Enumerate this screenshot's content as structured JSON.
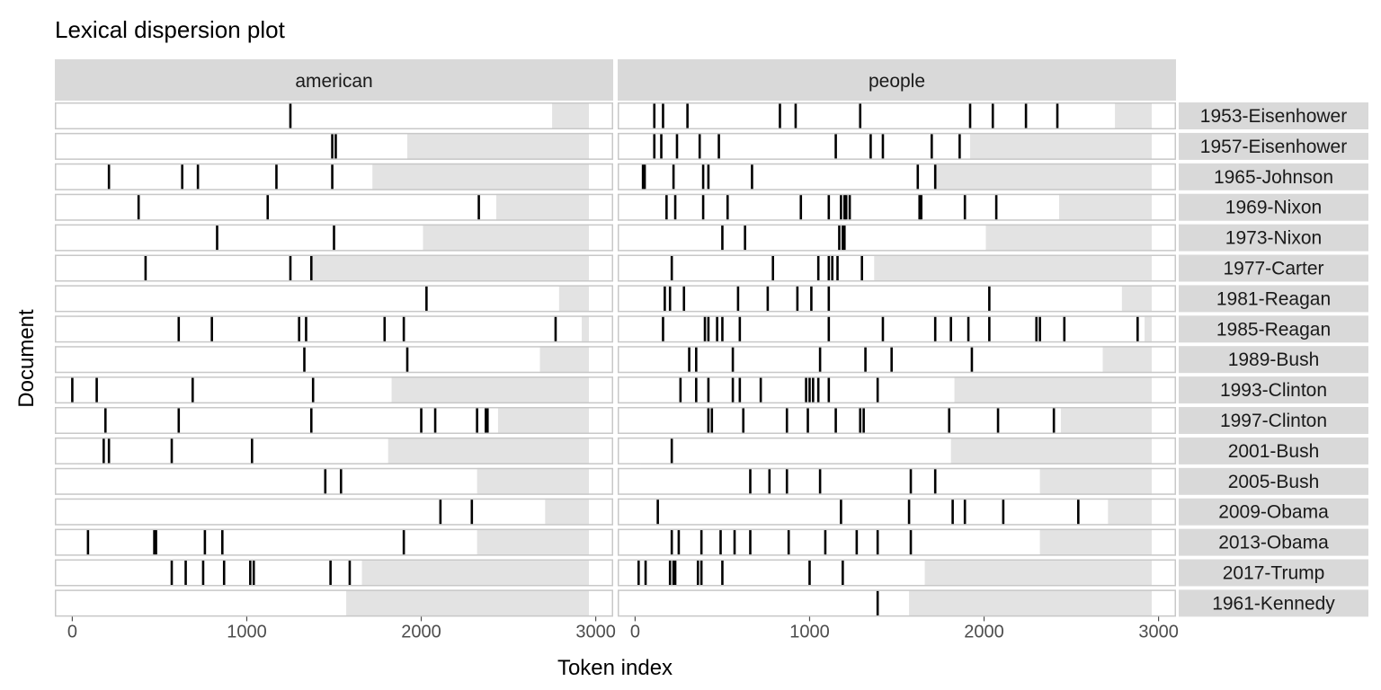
{
  "chart_data": {
    "type": "dispersion",
    "title": "Lexical dispersion plot",
    "xlabel": "Token index",
    "ylabel": "Document",
    "xlim": [
      -100,
      3100
    ],
    "xticks": [
      0,
      1000,
      2000,
      3000
    ],
    "panels": [
      "american",
      "people"
    ],
    "documents": [
      {
        "name": "1953-Eisenhower",
        "ntokens": 2750,
        "american": [
          1250
        ],
        "people": [
          110,
          160,
          300,
          830,
          920,
          1290,
          1920,
          2050,
          2240,
          2420
        ]
      },
      {
        "name": "1957-Eisenhower",
        "ntokens": 1920,
        "american": [
          1490,
          1510
        ],
        "people": [
          110,
          150,
          240,
          370,
          480,
          1150,
          1350,
          1420,
          1700,
          1860
        ]
      },
      {
        "name": "1965-Johnson",
        "ntokens": 1720,
        "american": [
          210,
          630,
          720,
          1170,
          1490
        ],
        "people": [
          45,
          55,
          220,
          390,
          420,
          670,
          1620,
          1720
        ]
      },
      {
        "name": "1969-Nixon",
        "ntokens": 2430,
        "american": [
          380,
          1120,
          2330
        ],
        "people": [
          180,
          230,
          390,
          530,
          950,
          1110,
          1180,
          1200,
          1210,
          1230,
          1630,
          1640,
          1890,
          2070
        ]
      },
      {
        "name": "1973-Nixon",
        "ntokens": 2010,
        "american": [
          830,
          1500
        ],
        "people": [
          500,
          630,
          1170,
          1190,
          1200
        ]
      },
      {
        "name": "1977-Carter",
        "ntokens": 1370,
        "american": [
          420,
          1250,
          1370
        ],
        "people": [
          210,
          790,
          1050,
          1110,
          1130,
          1160,
          1300
        ]
      },
      {
        "name": "1981-Reagan",
        "ntokens": 2790,
        "american": [
          2030
        ],
        "people": [
          170,
          200,
          280,
          590,
          760,
          930,
          1010,
          1110,
          2030
        ]
      },
      {
        "name": "1985-Reagan",
        "ntokens": 2920,
        "american": [
          610,
          800,
          1300,
          1340,
          1790,
          1900,
          2770
        ],
        "people": [
          160,
          400,
          420,
          470,
          500,
          600,
          1110,
          1420,
          1720,
          1810,
          1910,
          2030,
          2300,
          2320,
          2460,
          2880
        ]
      },
      {
        "name": "1989-Bush",
        "ntokens": 2680,
        "american": [
          1330,
          1920
        ],
        "people": [
          310,
          350,
          560,
          1060,
          1320,
          1470,
          1930
        ]
      },
      {
        "name": "1993-Clinton",
        "ntokens": 1830,
        "american": [
          0,
          140,
          690,
          1380
        ],
        "people": [
          260,
          350,
          420,
          560,
          600,
          720,
          980,
          1000,
          1020,
          1050,
          1110,
          1390
        ]
      },
      {
        "name": "1997-Clinton",
        "ntokens": 2440,
        "american": [
          190,
          610,
          1370,
          2000,
          2080,
          2320,
          2370,
          2380
        ],
        "people": [
          420,
          440,
          620,
          870,
          990,
          1150,
          1290,
          1310,
          1800,
          2080,
          2400
        ]
      },
      {
        "name": "2001-Bush",
        "ntokens": 1810,
        "american": [
          180,
          210,
          570,
          1030
        ],
        "people": [
          210
        ]
      },
      {
        "name": "2005-Bush",
        "ntokens": 2320,
        "american": [
          1450,
          1540
        ],
        "people": [
          660,
          770,
          870,
          1060,
          1580,
          1720
        ]
      },
      {
        "name": "2009-Obama",
        "ntokens": 2710,
        "american": [
          2110,
          2290
        ],
        "people": [
          130,
          1180,
          1570,
          1820,
          1890,
          2110,
          2540
        ]
      },
      {
        "name": "2013-Obama",
        "ntokens": 2320,
        "american": [
          90,
          470,
          480,
          760,
          860,
          1900
        ],
        "people": [
          210,
          250,
          380,
          490,
          570,
          660,
          880,
          1090,
          1270,
          1390,
          1580
        ]
      },
      {
        "name": "2017-Trump",
        "ntokens": 1660,
        "american": [
          570,
          650,
          750,
          870,
          1020,
          1040,
          1480,
          1590
        ],
        "people": [
          20,
          60,
          200,
          220,
          230,
          360,
          380,
          500,
          1000,
          1190
        ]
      },
      {
        "name": "1961-Kennedy",
        "ntokens": 1570,
        "american": [],
        "people": [
          1390
        ]
      }
    ]
  }
}
